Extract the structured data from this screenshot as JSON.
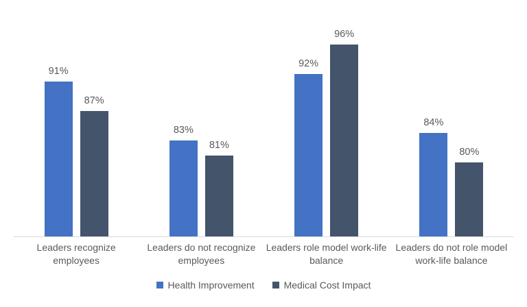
{
  "chart_data": {
    "type": "bar",
    "title": "",
    "xlabel": "",
    "ylabel": "",
    "categories": [
      "Leaders recognize employees",
      "Leaders do not recognize employees",
      "Leaders role model work-life balance",
      "Leaders do not role model work-life balance"
    ],
    "series": [
      {
        "name": "Health Improvement",
        "color": "#4472C4",
        "values": [
          91,
          83,
          92,
          84
        ]
      },
      {
        "name": "Medical Cost Impact",
        "color": "#44546A",
        "values": [
          87,
          81,
          96,
          80
        ]
      }
    ],
    "data_labels": [
      [
        "91%",
        "83%",
        "92%",
        "84%"
      ],
      [
        "87%",
        "81%",
        "96%",
        "80%"
      ]
    ],
    "value_suffix": "%",
    "ylim": [
      70,
      100
    ],
    "grid": false,
    "legend_position": "bottom",
    "colors": {
      "axis_line": "#D9D9D9",
      "text": "#595959",
      "background": "#FFFFFF"
    }
  }
}
